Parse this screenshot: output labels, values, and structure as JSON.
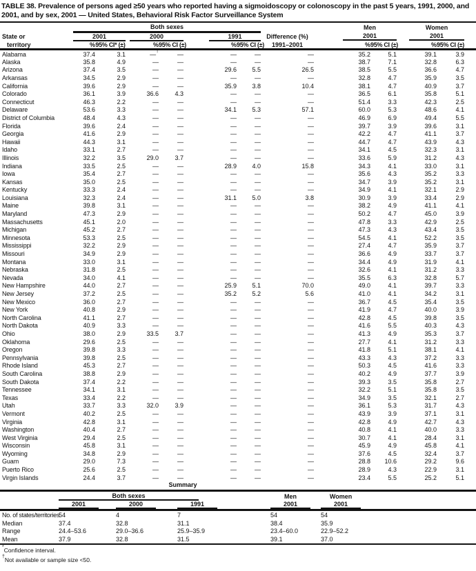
{
  "page": {
    "background": "#ffffff",
    "text_color": "#121212"
  },
  "title": "TABLE 38. Prevalence of persons aged ≥50 years who reported having a sigmoidoscopy or colonoscopy in the past 5 years, 1991, 2000, and 2001, and by sex, 2001 — United States, Behavioral Risk Factor Surveillance System",
  "header": {
    "state_line1": "State or",
    "state_line2": "territory",
    "both_sexes": "Both sexes",
    "men": "Men",
    "women": "Women",
    "y2001": "2001",
    "y2000": "2000",
    "y1991": "1991",
    "pct": "%",
    "ci_star": "95% CI* (±)",
    "ci": "95% CI (±)",
    "diff_line1": "Difference (%)",
    "diff_line2": "1991–2001"
  },
  "table": {
    "rows": [
      [
        "Alabama",
        "37.4",
        "3.1",
        "—†",
        "—",
        "—",
        "—",
        "—",
        "35.2",
        "5.1",
        "39.1",
        "3.9"
      ],
      [
        "Alaska",
        "35.8",
        "4.9",
        "—",
        "—",
        "—",
        "—",
        "—",
        "38.7",
        "7.1",
        "32.8",
        "6.3"
      ],
      [
        "Arizona",
        "37.4",
        "3.5",
        "—",
        "—",
        "29.6",
        "5.5",
        "26.5",
        "38.5",
        "5.5",
        "36.6",
        "4.7"
      ],
      [
        "Arkansas",
        "34.5",
        "2.9",
        "—",
        "—",
        "—",
        "—",
        "—",
        "32.8",
        "4.7",
        "35.9",
        "3.5"
      ],
      [
        "California",
        "39.6",
        "2.9",
        "—",
        "—",
        "35.9",
        "3.8",
        "10.4",
        "38.1",
        "4.7",
        "40.9",
        "3.7"
      ],
      [
        "Colorado",
        "36.1",
        "3.9",
        "36.6",
        "4.3",
        "—",
        "—",
        "—",
        "36.5",
        "6.1",
        "35.8",
        "5.1"
      ],
      [
        "Connecticut",
        "46.3",
        "2.2",
        "—",
        "—",
        "—",
        "—",
        "—",
        "51.4",
        "3.3",
        "42.3",
        "2.5"
      ],
      [
        "Delaware",
        "53.6",
        "3.3",
        "—",
        "—",
        "34.1",
        "5.3",
        "57.1",
        "60.0",
        "5.3",
        "48.6",
        "4.1"
      ],
      [
        "District of Columbia",
        "48.4",
        "4.3",
        "—",
        "—",
        "—",
        "—",
        "—",
        "46.9",
        "6.9",
        "49.4",
        "5.5"
      ],
      [
        "Florida",
        "39.6",
        "2.4",
        "—",
        "—",
        "—",
        "—",
        "—",
        "39.7",
        "3.9",
        "39.6",
        "3.1"
      ],
      [
        "Georgia",
        "41.6",
        "2.9",
        "—",
        "—",
        "—",
        "—",
        "—",
        "42.2",
        "4.7",
        "41.1",
        "3.7"
      ],
      [
        "Hawaii",
        "44.3",
        "3.1",
        "—",
        "—",
        "—",
        "—",
        "—",
        "44.7",
        "4.7",
        "43.9",
        "4.3"
      ],
      [
        "Idaho",
        "33.1",
        "2.7",
        "—",
        "—",
        "—",
        "—",
        "—",
        "34.1",
        "4.5",
        "32.3",
        "3.1"
      ],
      [
        "Illinois",
        "32.2",
        "3.5",
        "29.0",
        "3.7",
        "—",
        "—",
        "—",
        "33.6",
        "5.9",
        "31.2",
        "4.3"
      ],
      [
        "Indiana",
        "33.5",
        "2.5",
        "—",
        "—",
        "28.9",
        "4.0",
        "15.8",
        "34.3",
        "4.1",
        "33.0",
        "3.1"
      ],
      [
        "Iowa",
        "35.4",
        "2.7",
        "—",
        "—",
        "—",
        "—",
        "—",
        "35.6",
        "4.3",
        "35.2",
        "3.3"
      ],
      [
        "Kansas",
        "35.0",
        "2.5",
        "—",
        "—",
        "—",
        "—",
        "—",
        "34.7",
        "3.9",
        "35.2",
        "3.1"
      ],
      [
        "Kentucky",
        "33.3",
        "2.4",
        "—",
        "—",
        "—",
        "—",
        "—",
        "34.9",
        "4.1",
        "32.1",
        "2.9"
      ],
      [
        "Louisiana",
        "32.3",
        "2.4",
        "—",
        "—",
        "31.1",
        "5.0",
        "3.8",
        "30.9",
        "3.9",
        "33.4",
        "2.9"
      ],
      [
        "Maine",
        "39.8",
        "3.1",
        "—",
        "—",
        "—",
        "—",
        "—",
        "38.2",
        "4.9",
        "41.1",
        "4.1"
      ],
      [
        "Maryland",
        "47.3",
        "2.9",
        "—",
        "—",
        "—",
        "—",
        "—",
        "50.2",
        "4.7",
        "45.0",
        "3.9"
      ],
      [
        "Massachusetts",
        "45.1",
        "2.0",
        "—",
        "—",
        "—",
        "—",
        "—",
        "47.8",
        "3.3",
        "42.9",
        "2.5"
      ],
      [
        "Michigan",
        "45.2",
        "2.7",
        "—",
        "—",
        "—",
        "—",
        "—",
        "47.3",
        "4.3",
        "43.4",
        "3.5"
      ],
      [
        "Minnesota",
        "53.3",
        "2.5",
        "—",
        "—",
        "—",
        "—",
        "—",
        "54.5",
        "4.1",
        "52.2",
        "3.5"
      ],
      [
        "Mississippi",
        "32.2",
        "2.9",
        "—",
        "—",
        "—",
        "—",
        "—",
        "27.4",
        "4.7",
        "35.9",
        "3.7"
      ],
      [
        "Missouri",
        "34.9",
        "2.9",
        "—",
        "—",
        "—",
        "—",
        "—",
        "36.6",
        "4.9",
        "33.7",
        "3.7"
      ],
      [
        "Montana",
        "33.0",
        "3.1",
        "—",
        "—",
        "—",
        "—",
        "—",
        "34.4",
        "4.9",
        "31.9",
        "4.1"
      ],
      [
        "Nebraska",
        "31.8",
        "2.5",
        "—",
        "—",
        "—",
        "—",
        "—",
        "32.6",
        "4.1",
        "31.2",
        "3.3"
      ],
      [
        "Nevada",
        "34.0",
        "4.1",
        "—",
        "—",
        "—",
        "—",
        "—",
        "35.5",
        "6.3",
        "32.8",
        "5.7"
      ],
      [
        "New Hampshire",
        "44.0",
        "2.7",
        "—",
        "—",
        "25.9",
        "5.1",
        "70.0",
        "49.0",
        "4.1",
        "39.7",
        "3.3"
      ],
      [
        "New Jersey",
        "37.2",
        "2.5",
        "—",
        "—",
        "35.2",
        "5.2",
        "5.6",
        "41.0",
        "4.1",
        "34.2",
        "3.1"
      ],
      [
        "New Mexico",
        "36.0",
        "2.7",
        "—",
        "—",
        "—",
        "—",
        "—",
        "36.7",
        "4.5",
        "35.4",
        "3.5"
      ],
      [
        "New York",
        "40.8",
        "2.9",
        "—",
        "—",
        "—",
        "—",
        "—",
        "41.9",
        "4.7",
        "40.0",
        "3.9"
      ],
      [
        "North Carolina",
        "41.1",
        "2.7",
        "—",
        "—",
        "—",
        "—",
        "—",
        "42.8",
        "4.5",
        "39.8",
        "3.5"
      ],
      [
        "North Dakota",
        "40.9",
        "3.3",
        "—",
        "—",
        "—",
        "—",
        "—",
        "41.6",
        "5.5",
        "40.3",
        "4.3"
      ],
      [
        "Ohio",
        "38.0",
        "2.9",
        "33.5",
        "3.7",
        "—",
        "—",
        "—",
        "41.3",
        "4.9",
        "35.3",
        "3.7"
      ],
      [
        "Oklahoma",
        "29.6",
        "2.5",
        "—",
        "—",
        "—",
        "—",
        "—",
        "27.7",
        "4.1",
        "31.2",
        "3.3"
      ],
      [
        "Oregon",
        "39.8",
        "3.3",
        "—",
        "—",
        "—",
        "—",
        "—",
        "41.8",
        "5.1",
        "38.1",
        "4.1"
      ],
      [
        "Pennsylvania",
        "39.8",
        "2.5",
        "—",
        "—",
        "—",
        "—",
        "—",
        "43.3",
        "4.3",
        "37.2",
        "3.3"
      ],
      [
        "Rhode Island",
        "45.3",
        "2.7",
        "—",
        "—",
        "—",
        "—",
        "—",
        "50.3",
        "4.5",
        "41.6",
        "3.3"
      ],
      [
        "South Carolina",
        "38.8",
        "2.9",
        "—",
        "—",
        "—",
        "—",
        "—",
        "40.2",
        "4.9",
        "37.7",
        "3.9"
      ],
      [
        "South Dakota",
        "37.4",
        "2.2",
        "—",
        "—",
        "—",
        "—",
        "—",
        "39.3",
        "3.5",
        "35.8",
        "2.7"
      ],
      [
        "Tennessee",
        "34.1",
        "3.1",
        "—",
        "—",
        "—",
        "—",
        "—",
        "32.2",
        "5.1",
        "35.8",
        "3.5"
      ],
      [
        "Texas",
        "33.4",
        "2.2",
        "—",
        "—",
        "—",
        "—",
        "—",
        "34.9",
        "3.5",
        "32.1",
        "2.7"
      ],
      [
        "Utah",
        "33.7",
        "3.3",
        "32.0",
        "3.9",
        "—",
        "—",
        "—",
        "36.1",
        "5.3",
        "31.7",
        "4.3"
      ],
      [
        "Vermont",
        "40.2",
        "2.5",
        "—",
        "—",
        "—",
        "—",
        "—",
        "43.9",
        "3.9",
        "37.1",
        "3.1"
      ],
      [
        "Virginia",
        "42.8",
        "3.1",
        "—",
        "—",
        "—",
        "—",
        "—",
        "42.8",
        "4.9",
        "42.7",
        "4.3"
      ],
      [
        "Washington",
        "40.4",
        "2.7",
        "—",
        "—",
        "—",
        "—",
        "—",
        "40.8",
        "4.1",
        "40.0",
        "3.3"
      ],
      [
        "West Virginia",
        "29.4",
        "2.5",
        "—",
        "—",
        "—",
        "—",
        "—",
        "30.7",
        "4.1",
        "28.4",
        "3.1"
      ],
      [
        "Wisconsin",
        "45.8",
        "3.1",
        "—",
        "—",
        "—",
        "—",
        "—",
        "45.9",
        "4.9",
        "45.8",
        "4.1"
      ],
      [
        "Wyoming",
        "34.8",
        "2.9",
        "—",
        "—",
        "—",
        "—",
        "—",
        "37.6",
        "4.5",
        "32.4",
        "3.7"
      ],
      [
        "Guam",
        "29.0",
        "7.3",
        "—",
        "—",
        "—",
        "—",
        "—",
        "28.8",
        "10.6",
        "29.2",
        "9.6"
      ],
      [
        "Puerto Rico",
        "25.6",
        "2.5",
        "—",
        "—",
        "—",
        "—",
        "—",
        "28.9",
        "4.3",
        "22.9",
        "3.1"
      ],
      [
        "Virgin Islands",
        "24.4",
        "3.7",
        "—",
        "—",
        "—",
        "—",
        "—",
        "23.4",
        "5.5",
        "25.2",
        "5.1"
      ]
    ]
  },
  "summary": {
    "heading": "Summary",
    "both_sexes": "Both sexes",
    "men": "Men",
    "women": "Women",
    "y2001": "2001",
    "y2000": "2000",
    "y1991": "1991",
    "rows": [
      {
        "label": "No. of states/territories",
        "values": [
          "54",
          "4",
          "7",
          "54",
          "54"
        ]
      },
      {
        "label": "Median",
        "values": [
          "37.4",
          "32.8",
          "31.1",
          "38.4",
          "35.9"
        ]
      },
      {
        "label": "Range",
        "values": [
          "24.4–53.6",
          "29.0–36.6",
          "25.9–35.9",
          "23.4–60.0",
          "22.9–52.2"
        ]
      },
      {
        "label": "Mean",
        "values": [
          "37.9",
          "32.8",
          "31.5",
          "39.1",
          "37.0"
        ]
      }
    ]
  },
  "footnotes": [
    {
      "marker": "*",
      "text": "Confidence interval."
    },
    {
      "marker": "†",
      "text": "Not available or sample size <50."
    }
  ]
}
